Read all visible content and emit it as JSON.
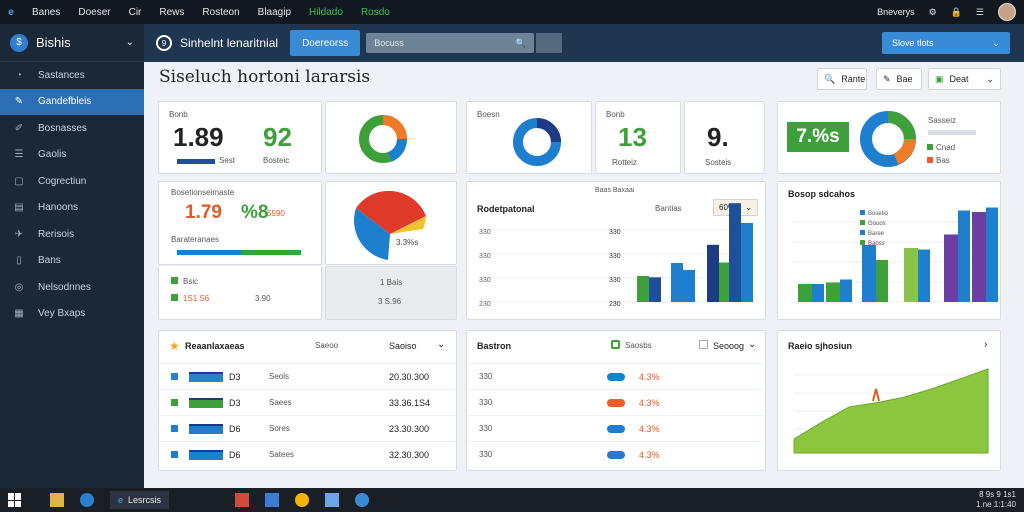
{
  "topbar": {
    "menu": [
      "Banes",
      "Doeser",
      "Cir",
      "Rews",
      "Rosteon",
      "Blaagip",
      "Hildado",
      "Rosdo"
    ],
    "user": "Bneverys"
  },
  "sidebar": {
    "title": "Bishis",
    "items": [
      {
        "label": "Sastances",
        "icon": "gauge-icon"
      },
      {
        "label": "Gandefbleis",
        "icon": "chart-icon",
        "active": true
      },
      {
        "label": "Bosnasses",
        "icon": "edit-icon"
      },
      {
        "label": "Gaolis",
        "icon": "list-icon"
      },
      {
        "label": "Cogrectiun",
        "icon": "square-icon"
      },
      {
        "label": "Hanoons",
        "icon": "calendar-icon"
      },
      {
        "label": "Rerisois",
        "icon": "pin-icon"
      },
      {
        "label": "Bans",
        "icon": "doc-icon"
      },
      {
        "label": "Nelsodnnes",
        "icon": "globe-icon"
      },
      {
        "label": "Vey Bxaps",
        "icon": "grid-icon"
      }
    ]
  },
  "header": {
    "title": "Sinhelnt lenaritnial",
    "tab": "Doereorss",
    "search_placeholder": "Bocuss",
    "button": "Slove tlots"
  },
  "page": {
    "title": "Siseluch hortoni lararsis",
    "buttons": [
      "Rante",
      "Bae",
      "Deat"
    ]
  },
  "cards": {
    "k1": {
      "label": "Bonb",
      "value": "1.89",
      "sub": "Sest",
      "value2": "92",
      "sub2": "Bosteic"
    },
    "k2": {
      "legend": "Boesn",
      "value": "13",
      "sub": "Rotteiz",
      "value2": "9.",
      "sub2": "Sosteis",
      "label": "Bonb"
    },
    "k3": {
      "value": "7.%s",
      "legend": [
        "Sasseiz",
        "Cnad",
        "Bas"
      ],
      "colors": [
        "#3ea03a",
        "#1f7fcf",
        "#ef7a2a"
      ]
    },
    "k4": {
      "title": "Bosetionseimaste",
      "value": "1.79",
      "value2": "%8",
      "sub": "5590",
      "foot": "Barateranaes",
      "legend1": "Bsic",
      "r1": "1S1 S6",
      "r2": "3.90"
    },
    "k5": {
      "val": "3.3%s",
      "val2": "1 Bais",
      "val3": "3 S.96"
    },
    "bar1": {
      "title": "Rodetpatonal",
      "label": "Bantias",
      "dd": "60%",
      "top": "Baas Baxaai"
    },
    "bar2": {
      "title": "Bosop sdcahos"
    },
    "t1": {
      "title": "Reaanlaxaeas",
      "col1": "Saeoo",
      "col2": "Saoiso"
    },
    "t2": {
      "title": "Bastron",
      "col1": "Saosbs",
      "dd": "Seooog"
    },
    "area": {
      "title": "Raeio sjhosiun"
    }
  },
  "table1": [
    {
      "a": "D3",
      "b": "Seols",
      "v": "20.30.300",
      "c": "#2f7fd0"
    },
    {
      "a": "D3",
      "b": "Saees",
      "v": "33.36.1S4",
      "c": "#3ea03a"
    },
    {
      "a": "D6",
      "b": "Sores",
      "v": "23.30.300",
      "c": "#1f7fcf"
    },
    {
      "a": "D6",
      "b": "Satees",
      "v": "32.30.300",
      "c": "#1f7fcf"
    }
  ],
  "table2": [
    {
      "a": "330",
      "p": "4.3%",
      "c": "#1f7fcf"
    },
    {
      "a": "330",
      "p": "4.3%",
      "c": "#ef5a2a"
    },
    {
      "a": "330",
      "p": "4.3%",
      "c": "#1f7fcf"
    },
    {
      "a": "330",
      "p": "4.3%",
      "c": "#1f7fcf"
    }
  ],
  "chart_data": [
    {
      "type": "bar",
      "title": "Rodetpatonal",
      "ticks": [
        "330",
        "330",
        "330",
        "230",
        "330"
      ],
      "series": [
        {
          "values": [
            1,
            1.5,
            2.2,
            3.8,
            2.8
          ]
        },
        {
          "values": [
            1,
            1.3,
            1.6,
            3.2,
            2.8
          ]
        }
      ]
    },
    {
      "type": "bar",
      "title": "Bosop sdcahos",
      "legend": [
        "Bosetio",
        "Gouos",
        "Baree",
        "Baoss"
      ],
      "series": [
        {
          "values": [
            1.2,
            1.3,
            3.8,
            3.6,
            4.5,
            6.0
          ]
        },
        {
          "values": [
            1.2,
            1.5,
            2.8,
            3.5,
            6.1,
            6.3
          ]
        }
      ]
    },
    {
      "type": "area",
      "title": "Raeio sjhosiun",
      "values": [
        1.0,
        2.2,
        3.3,
        3.6,
        4.0,
        4.6,
        5.3,
        6.0
      ]
    }
  ],
  "taskbar": {
    "app": "Lesrcsis",
    "time": "8 9s 9 1s1\n1.ne 1:1:40"
  }
}
